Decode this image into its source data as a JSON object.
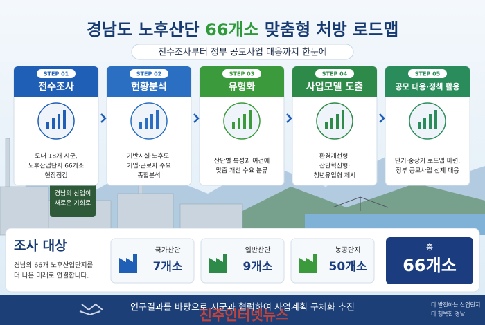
{
  "header": {
    "title_pre": "경남도 노후산단",
    "title_highlight": "66개소",
    "title_post": "맞춤형 처방 로드맵",
    "subtitle": "전수조사부터 정부 공모사업 대응까지 한눈에"
  },
  "steps": [
    {
      "step": "STEP 01",
      "title": "전수조사",
      "color": "#1f5fb5",
      "lines": [
        "도내 18개 시군,",
        "노후산업단지 66개소",
        "현장점검"
      ]
    },
    {
      "step": "STEP 02",
      "title": "현황분석",
      "color": "#2b6fc2",
      "lines": [
        "기반시설·노후도·",
        "기업·근로자 수요",
        "종합분석"
      ]
    },
    {
      "step": "STEP 03",
      "title": "유형화",
      "color": "#3b9a3c",
      "lines": [
        "산단별 특성과 여건에",
        "맞춤 개선 수요 분류"
      ]
    },
    {
      "step": "STEP 04",
      "title": "사업모델 도출",
      "color": "#2e8a48",
      "lines": [
        "환경개선형·",
        "산단혁신형·",
        "청년유입형 제시"
      ]
    },
    {
      "step": "STEP 05",
      "title": "공모 대응·정책 활용",
      "color": "#2a8c5a",
      "lines": [
        "단기·중장기 로드맵 마련,",
        "정부 공모사업 선제 대응"
      ]
    }
  ],
  "sign": [
    "경남의 산업이",
    "새로운 기회로"
  ],
  "target": {
    "title": "조사 대상",
    "desc": [
      "경남의 66개 노후산업단지를",
      "더 나은 미래로 연결합니다."
    ],
    "items": [
      {
        "name": "국가산단",
        "count": "7개소"
      },
      {
        "name": "일반산단",
        "count": "9개소"
      },
      {
        "name": "농공단지",
        "count": "50개소"
      }
    ],
    "total_label": "총",
    "total": "66개소"
  },
  "footer": {
    "text": "연구결과를 바탕으로 시군과 협력하여 사업계획 구체화 추진",
    "slogan": [
      "더 발전하는 산업단지",
      "더 행복한 경남"
    ],
    "watermark": "진주인터넷뉴스"
  }
}
